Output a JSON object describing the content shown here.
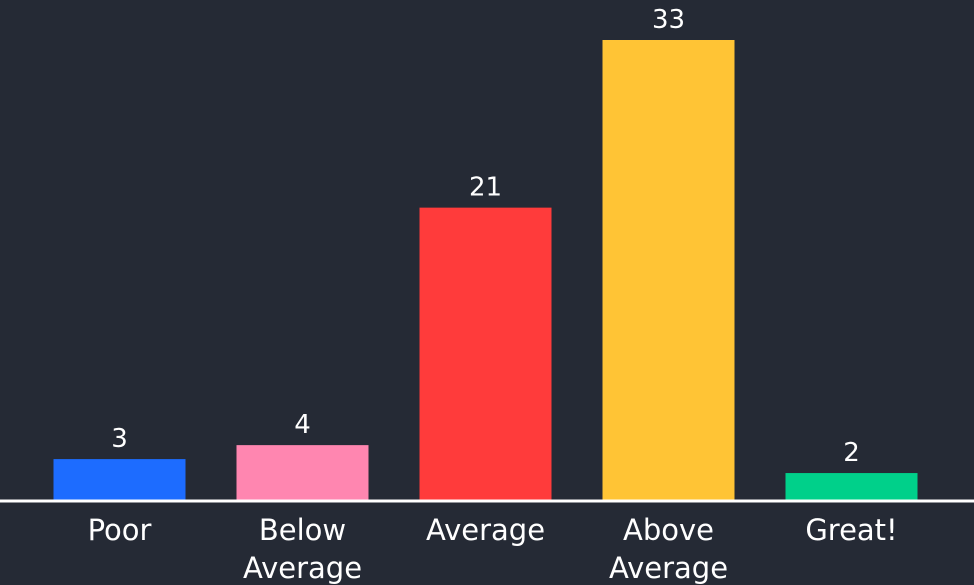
{
  "chart_data": {
    "type": "bar",
    "categories": [
      [
        "Poor"
      ],
      [
        "Below",
        "Average"
      ],
      [
        "Average"
      ],
      [
        "Above",
        "Average"
      ],
      [
        "Great!"
      ]
    ],
    "values": [
      3,
      4,
      21,
      33,
      2
    ],
    "colors": [
      "#1d6cff",
      "#ff86b0",
      "#ff3b3b",
      "#ffc435",
      "#00d08a"
    ],
    "title": "",
    "xlabel": "",
    "ylabel": "",
    "ylim": [
      0,
      33
    ],
    "grid": false,
    "legend": "none",
    "background": "#252a35",
    "baseline_color": "#ffffff",
    "text_color": "#ffffff"
  }
}
